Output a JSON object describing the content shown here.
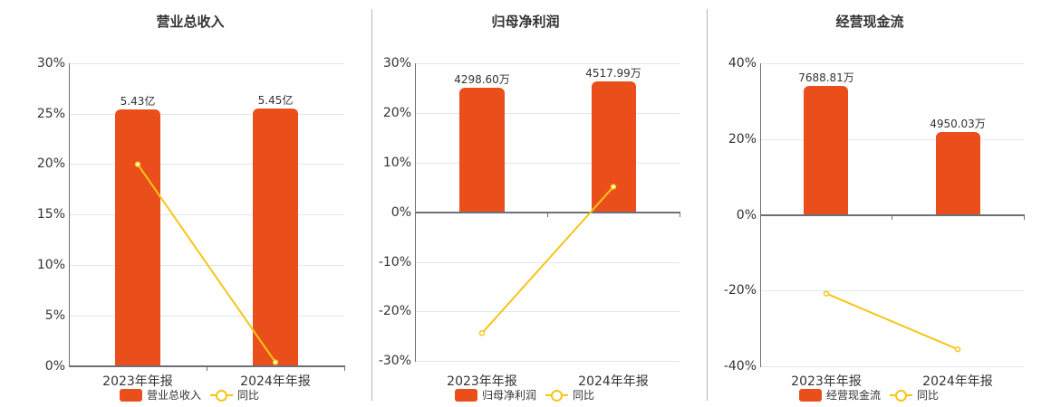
{
  "colors": {
    "bar": "#e94e1b",
    "line": "#f5c518",
    "grid": "#e0e6f0",
    "axis": "#6e7079"
  },
  "charts": [
    {
      "title": "营业总收入",
      "yticks": [
        "30%",
        "25%",
        "20%",
        "15%",
        "10%",
        "5%",
        "0%"
      ],
      "categories": [
        "2023年年报",
        "2024年年报"
      ],
      "bar_labels": [
        "5.43亿",
        "5.45亿"
      ],
      "legend": {
        "bar": "营业总收入",
        "line": "同比"
      }
    },
    {
      "title": "归母净利润",
      "yticks": [
        "30%",
        "20%",
        "10%",
        "0%",
        "-10%",
        "-20%",
        "-30%"
      ],
      "categories": [
        "2023年年报",
        "2024年年报"
      ],
      "bar_labels": [
        "4298.60万",
        "4517.99万"
      ],
      "legend": {
        "bar": "归母净利润",
        "line": "同比"
      }
    },
    {
      "title": "经营现金流",
      "yticks": [
        "40%",
        "20%",
        "0%",
        "-20%",
        "-40%"
      ],
      "categories": [
        "2023年年报",
        "2024年年报"
      ],
      "bar_labels": [
        "7688.81万",
        "4950.03万"
      ],
      "legend": {
        "bar": "经营现金流",
        "line": "同比"
      }
    }
  ],
  "chart_data": [
    {
      "type": "bar",
      "title": "营业总收入",
      "categories": [
        "2023年年报",
        "2024年年报"
      ],
      "series": [
        {
          "name": "营业总收入",
          "type": "bar",
          "values": [
            5.43,
            5.45
          ],
          "unit": "亿",
          "labels": [
            "5.43亿",
            "5.45亿"
          ]
        },
        {
          "name": "同比",
          "type": "line",
          "values": [
            20.0,
            0.4
          ],
          "unit": "%"
        }
      ],
      "ylim": [
        0,
        30
      ],
      "yticks": [
        0,
        5,
        10,
        15,
        20,
        25,
        30
      ],
      "grid": true,
      "legend_position": "bottom"
    },
    {
      "type": "bar",
      "title": "归母净利润",
      "categories": [
        "2023年年报",
        "2024年年报"
      ],
      "series": [
        {
          "name": "归母净利润",
          "type": "bar",
          "values": [
            4298.6,
            4517.99
          ],
          "unit": "万",
          "labels": [
            "4298.60万",
            "4517.99万"
          ]
        },
        {
          "name": "同比",
          "type": "line",
          "values": [
            -24.4,
            5.1
          ],
          "unit": "%"
        }
      ],
      "ylim": [
        -30,
        30
      ],
      "yticks": [
        -30,
        -20,
        -10,
        0,
        10,
        20,
        30
      ],
      "grid": true,
      "legend_position": "bottom"
    },
    {
      "type": "bar",
      "title": "经营现金流",
      "categories": [
        "2023年年报",
        "2024年年报"
      ],
      "series": [
        {
          "name": "经营现金流",
          "type": "bar",
          "values": [
            7688.81,
            4950.03
          ],
          "unit": "万",
          "labels": [
            "7688.81万",
            "4950.03万"
          ]
        },
        {
          "name": "同比",
          "type": "line",
          "values": [
            -20.8,
            -35.5
          ],
          "unit": "%"
        }
      ],
      "ylim": [
        -40,
        40
      ],
      "yticks": [
        -40,
        -20,
        0,
        20,
        40
      ],
      "grid": true,
      "legend_position": "bottom"
    }
  ]
}
